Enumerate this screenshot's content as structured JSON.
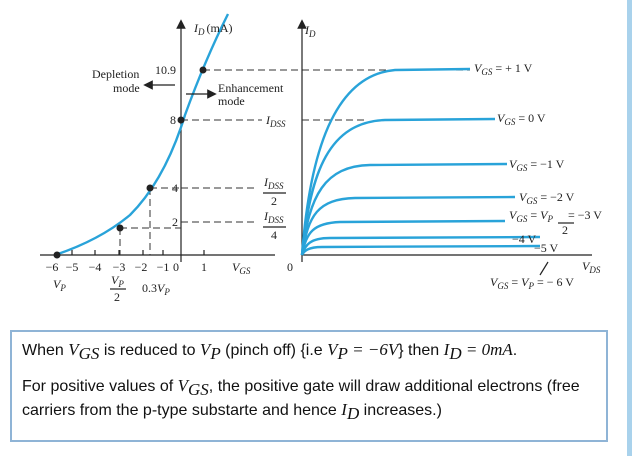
{
  "figure": {
    "left": {
      "y_axis": [
        "I",
        "D",
        "(mA)"
      ],
      "idss_max": "10.9",
      "depletion": [
        "Depletion",
        "mode"
      ],
      "enhancement": [
        "Enhancement",
        "mode"
      ],
      "y_marks": [
        "8",
        "4",
        "2"
      ],
      "idss": [
        "I",
        "DSS"
      ],
      "idss_half": [
        "I",
        "DSS",
        "2"
      ],
      "idss_quarter": [
        "I",
        "DSS",
        "4"
      ],
      "x_ticks": [
        "−6",
        "−5",
        "−4",
        "−3",
        "−2",
        "−1",
        "0",
        "1"
      ],
      "x_axis": [
        "V",
        "GS"
      ],
      "vp": [
        "V",
        "P"
      ],
      "vp_half": [
        "V",
        "P",
        "2"
      ],
      "vp_03": [
        "0.3",
        "V",
        "P"
      ]
    },
    "right": {
      "y_axis": [
        "I",
        "D"
      ],
      "origin": "0",
      "x_axis": [
        "V",
        "DS"
      ],
      "curves": {
        "plus1": [
          "V",
          "GS",
          " = + 1 V"
        ],
        "zero": [
          "V",
          "GS",
          " = 0 V"
        ],
        "minus1": [
          "V",
          "GS",
          " = −1 V"
        ],
        "minus2": [
          "V",
          "GS",
          " = −2  V"
        ],
        "minus3": [
          "V",
          "GS",
          " = ",
          "V",
          "P",
          "2",
          " = −3 V"
        ],
        "minus4": "−4 V",
        "minus5": "−5 V",
        "minus6": [
          "V",
          "GS",
          " = ",
          "V",
          "P",
          " = − 6 V"
        ]
      }
    }
  },
  "text": {
    "p1": [
      "When ",
      "V",
      "GS",
      " is reduced to ",
      "V",
      "P",
      " (pinch off) {i.e ",
      "V",
      "P",
      " = −6",
      "V",
      "} then ",
      "I",
      "D",
      " = 0",
      "mA",
      "."
    ],
    "p2": [
      "For positive values of ",
      "V",
      "GS",
      ", the positive gate will draw additional electrons (free carriers from the p-type substarte and hence ",
      "I",
      "D",
      " increases.)"
    ]
  }
}
